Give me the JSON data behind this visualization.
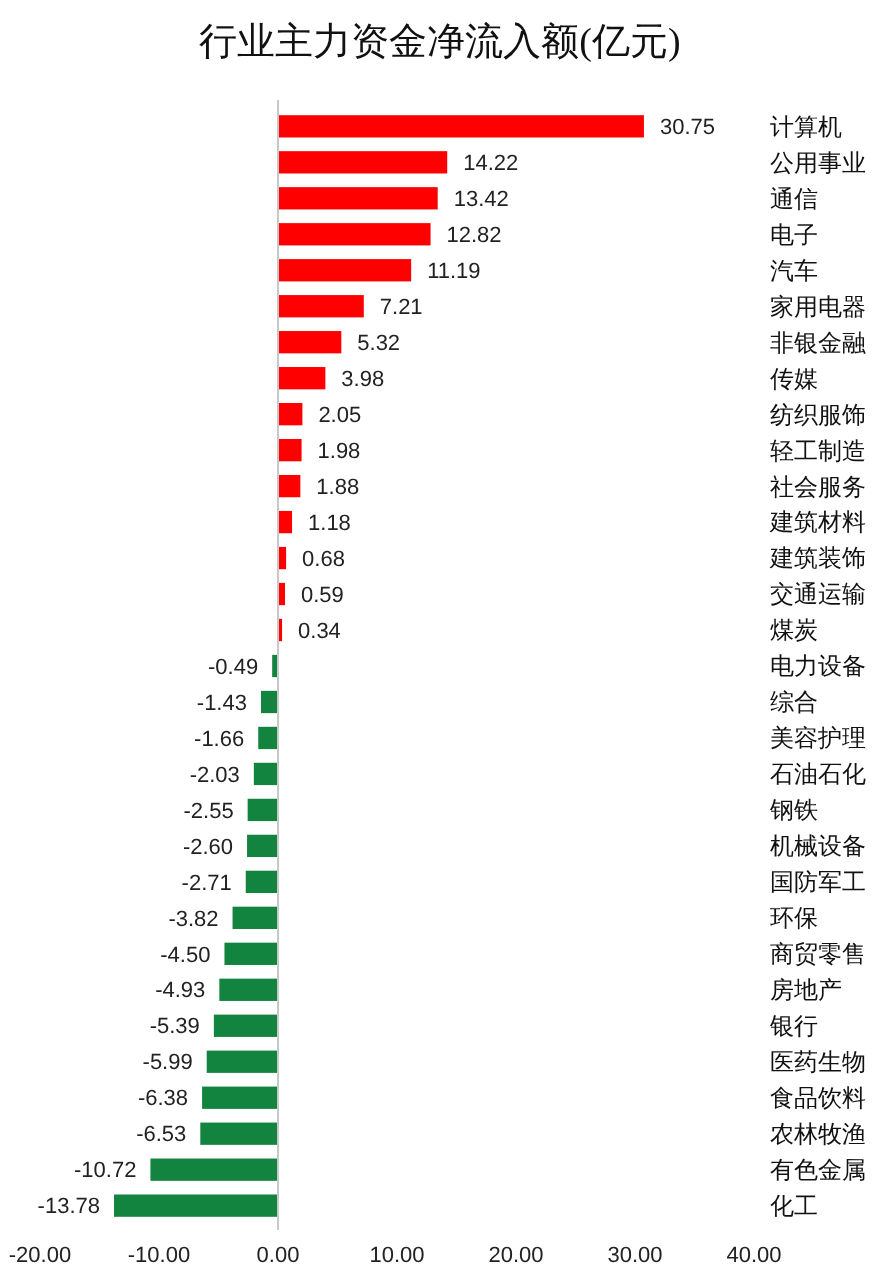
{
  "chart_data": {
    "type": "bar",
    "orientation": "horizontal",
    "title": "行业主力资金净流入额(亿元)",
    "categories": [
      "计算机",
      "公用事业",
      "通信",
      "电子",
      "汽车",
      "家用电器",
      "非银金融",
      "传媒",
      "纺织服饰",
      "轻工制造",
      "社会服务",
      "建筑材料",
      "建筑装饰",
      "交通运输",
      "煤炭",
      "电力设备",
      "综合",
      "美容护理",
      "石油石化",
      "钢铁",
      "机械设备",
      "国防军工",
      "环保",
      "商贸零售",
      "房地产",
      "银行",
      "医药生物",
      "食品饮料",
      "农林牧渔",
      "有色金属",
      "化工"
    ],
    "values": [
      30.75,
      14.22,
      13.42,
      12.82,
      11.19,
      7.21,
      5.32,
      3.98,
      2.05,
      1.98,
      1.88,
      1.18,
      0.68,
      0.59,
      0.34,
      -0.49,
      -1.43,
      -1.66,
      -2.03,
      -2.55,
      -2.6,
      -2.71,
      -3.82,
      -4.5,
      -4.93,
      -5.39,
      -5.99,
      -6.38,
      -6.53,
      -10.72,
      -13.78
    ],
    "value_labels": [
      "30.75",
      "14.22",
      "13.42",
      "12.82",
      "11.19",
      "7.21",
      "5.32",
      "3.98",
      "2.05",
      "1.98",
      "1.88",
      "1.18",
      "0.68",
      "0.59",
      "0.34",
      "-0.49",
      "-1.43",
      "-1.66",
      "-2.03",
      "-2.55",
      "-2.60",
      "-2.71",
      "-3.82",
      "-4.50",
      "-4.93",
      "-5.39",
      "-5.99",
      "-6.38",
      "-6.53",
      "-10.72",
      "-13.78"
    ],
    "colors": [
      "#ff0000",
      "#ff0000",
      "#ff0000",
      "#ff0000",
      "#ff0000",
      "#ff0000",
      "#ff0000",
      "#ff0000",
      "#ff0000",
      "#ff0000",
      "#ff0000",
      "#ff0000",
      "#ff0000",
      "#ff0000",
      "#ff0000",
      "#138440",
      "#138440",
      "#138440",
      "#138440",
      "#138440",
      "#138440",
      "#138440",
      "#138440",
      "#138440",
      "#138440",
      "#138440",
      "#138440",
      "#138440",
      "#138440",
      "#138440",
      "#138440"
    ],
    "xlim": [
      -20,
      40
    ],
    "xticks": [
      {
        "value": -20,
        "label": "-20.00"
      },
      {
        "value": -10,
        "label": "-10.00"
      },
      {
        "value": 0,
        "label": "0.00"
      },
      {
        "value": 10,
        "label": "10.00"
      },
      {
        "value": 20,
        "label": "20.00"
      },
      {
        "value": 30,
        "label": "30.00"
      },
      {
        "value": 40,
        "label": "40.00"
      }
    ]
  }
}
